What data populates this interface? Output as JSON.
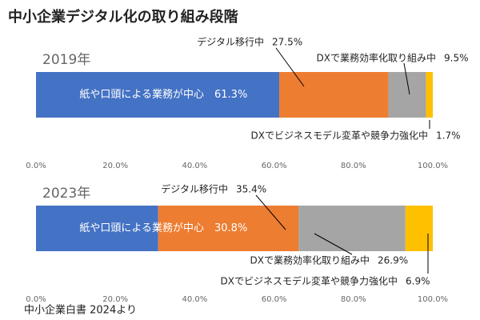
{
  "title": "中小企業デジタル化の取り組み段階",
  "source": "中小企業白書 2024より",
  "chart_data": [
    {
      "type": "bar",
      "orientation": "horizontal",
      "stacked": true,
      "categories": [
        "2019年"
      ],
      "series": [
        {
          "name": "紙や口頭による業務が中心",
          "color": "#4472c4",
          "values": [
            61.3
          ],
          "value_labels": [
            "61.3%"
          ]
        },
        {
          "name": "デジタル移行中",
          "color": "#ed7d31",
          "values": [
            27.5
          ],
          "value_labels": [
            "27.5%"
          ]
        },
        {
          "name": "DXで業務効率化取り組み中",
          "color": "#a5a5a5",
          "values": [
            9.5
          ],
          "value_labels": [
            "9.5%"
          ]
        },
        {
          "name": "DXでビジネスモデル変革や競争力強化中",
          "color": "#ffc000",
          "values": [
            1.7
          ],
          "value_labels": [
            "1.7%"
          ]
        }
      ],
      "xlim": [
        0,
        100
      ],
      "xticks": [
        {
          "value": 0,
          "label": "0.0%"
        },
        {
          "value": 20,
          "label": "20.0%"
        },
        {
          "value": 40,
          "label": "40.0%"
        },
        {
          "value": 60,
          "label": "60.0%"
        },
        {
          "value": 80,
          "label": "80.0%"
        },
        {
          "value": 100,
          "label": "100.0%"
        }
      ]
    },
    {
      "type": "bar",
      "orientation": "horizontal",
      "stacked": true,
      "categories": [
        "2023年"
      ],
      "series": [
        {
          "name": "紙や口頭による業務が中心",
          "color": "#4472c4",
          "values": [
            30.8
          ],
          "value_labels": [
            "30.8%"
          ]
        },
        {
          "name": "デジタル移行中",
          "color": "#ed7d31",
          "values": [
            35.4
          ],
          "value_labels": [
            "35.4%"
          ]
        },
        {
          "name": "DXで業務効率化取り組み中",
          "color": "#a5a5a5",
          "values": [
            26.9
          ],
          "value_labels": [
            "26.9%"
          ]
        },
        {
          "name": "DXでビジネスモデル変革や競争力強化中",
          "color": "#ffc000",
          "values": [
            6.9
          ],
          "value_labels": [
            "6.9%"
          ]
        }
      ],
      "xlim": [
        0,
        100
      ],
      "xticks": [
        {
          "value": 0,
          "label": "0.0%"
        },
        {
          "value": 20,
          "label": "20.0%"
        },
        {
          "value": 40,
          "label": "40.0%"
        },
        {
          "value": 60,
          "label": "60.0%"
        },
        {
          "value": 80,
          "label": "80.0%"
        },
        {
          "value": 100,
          "label": "100.0%"
        }
      ]
    }
  ]
}
